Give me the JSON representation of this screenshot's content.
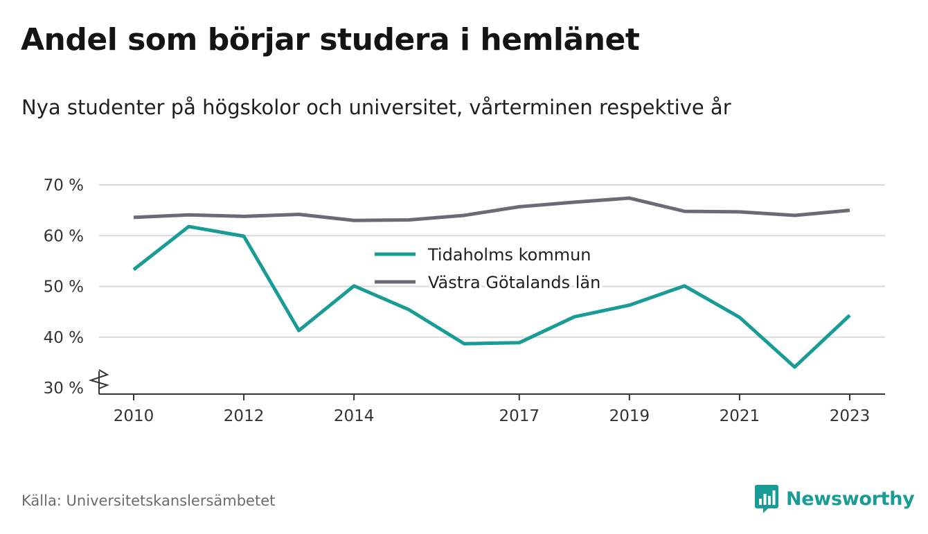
{
  "header": {
    "title": "Andel som börjar studera i hemlänet",
    "subtitle": "Nya studenter på högskolor och universitet, vårterminen respektive år"
  },
  "footer": {
    "source": "Källa: Universitetskanslersämbetet",
    "brand": "Newsworthy",
    "brand_icon": "bar-chart-speech-bubble-icon"
  },
  "colors": {
    "tidaholm": "#1a9c96",
    "vastra_gotaland": "#6c6b75",
    "grid": "#d9d9d9",
    "axis": "#333333"
  },
  "chart_data": {
    "type": "line",
    "title": "Andel som börjar studera i hemlänet",
    "subtitle": "Nya studenter på högskolor och universitet, vårterminen respektive år",
    "xlabel": "",
    "ylabel": "",
    "x": [
      2010,
      2011,
      2012,
      2013,
      2014,
      2015,
      2016,
      2017,
      2018,
      2019,
      2020,
      2021,
      2022,
      2023
    ],
    "x_tick_labels": [
      "2010",
      "2012",
      "2014",
      "2017",
      "2019",
      "2021",
      "2023"
    ],
    "x_tick_values": [
      2010,
      2012,
      2014,
      2017,
      2019,
      2021,
      2023
    ],
    "y_tick_labels": [
      "30 %",
      "40 %",
      "50 %",
      "60 %",
      "70 %"
    ],
    "y_tick_values": [
      30,
      40,
      50,
      60,
      70
    ],
    "ylim": [
      30,
      70
    ],
    "y_axis_break": true,
    "grid": true,
    "legend_position": "center",
    "series": [
      {
        "name": "Tidaholms kommun",
        "values": [
          53.3,
          61.8,
          59.9,
          41.3,
          50.1,
          45.4,
          38.7,
          38.9,
          44.0,
          46.3,
          50.1,
          43.9,
          34.1,
          44.3
        ]
      },
      {
        "name": "Västra Götalands län",
        "values": [
          63.6,
          64.1,
          63.8,
          64.2,
          63.0,
          63.1,
          64.0,
          65.7,
          66.6,
          67.4,
          64.8,
          64.7,
          64.0,
          65.0
        ]
      }
    ]
  }
}
